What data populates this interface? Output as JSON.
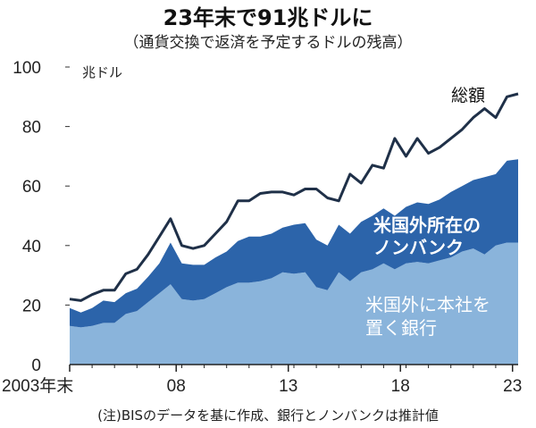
{
  "chart_data": {
    "type": "area",
    "title": "23年末で91兆ドルに",
    "subtitle": "（通貨交換で返済を予定するドルの残高）",
    "unit_label": "兆ドル",
    "note": "(注)BISのデータを基に作成、銀行とノンバンクは推計値",
    "ylim": [
      0,
      100
    ],
    "yticks": [
      0,
      20,
      40,
      60,
      80,
      100
    ],
    "xlim": [
      2003.75,
      2023.75
    ],
    "xticks": [
      {
        "value": 2003.75,
        "label": "2003年末"
      },
      {
        "value": 2008.5,
        "label": "08"
      },
      {
        "value": 2013.5,
        "label": "13"
      },
      {
        "value": 2018.5,
        "label": "18"
      },
      {
        "value": 2023.5,
        "label": "23"
      }
    ],
    "x": [
      2003.75,
      2004.25,
      2004.75,
      2005.25,
      2005.75,
      2006.25,
      2006.75,
      2007.25,
      2007.75,
      2008.25,
      2008.75,
      2009.25,
      2009.75,
      2010.25,
      2010.75,
      2011.25,
      2011.75,
      2012.25,
      2012.75,
      2013.25,
      2013.75,
      2014.25,
      2014.75,
      2015.25,
      2015.75,
      2016.25,
      2016.75,
      2017.25,
      2017.75,
      2018.25,
      2018.75,
      2019.25,
      2019.75,
      2020.25,
      2020.75,
      2021.25,
      2021.75,
      2022.25,
      2022.75,
      2023.25,
      2023.75
    ],
    "series": [
      {
        "name": "米国外に本社を置く銀行",
        "label_lines": [
          "米国外に本社を",
          "置く銀行"
        ],
        "color": "#8ab4db",
        "values": [
          13,
          12.5,
          13,
          14,
          14,
          17,
          18,
          21,
          24,
          27,
          22,
          21.5,
          22,
          24,
          26,
          27.5,
          27.5,
          28,
          29,
          31,
          30.5,
          31,
          26,
          25,
          31,
          28,
          31,
          32,
          34,
          32,
          34,
          34.5,
          34,
          35,
          36,
          38,
          39,
          37,
          40,
          41,
          41
        ]
      },
      {
        "name": "米国外所在のノンバンク",
        "label_lines": [
          "米国外所在の",
          "ノンバンク"
        ],
        "color": "#2c64aa",
        "values": [
          6,
          5,
          6,
          7.5,
          7,
          7,
          7.5,
          8.5,
          10,
          14,
          12,
          12,
          11.5,
          12,
          12,
          14,
          15.5,
          15,
          15,
          15,
          16.5,
          16.5,
          16,
          15,
          16,
          16,
          17,
          18,
          18.5,
          18,
          19,
          20,
          20,
          20.5,
          22,
          22,
          23,
          26,
          24,
          27.5,
          28
        ]
      }
    ],
    "total": {
      "name": "総額",
      "color": "#1f3048",
      "values": [
        22,
        21.5,
        23.5,
        25,
        25,
        30.5,
        32,
        37,
        43,
        49,
        40,
        39,
        40,
        44,
        48,
        55,
        55,
        57.5,
        58,
        58,
        57,
        59,
        59,
        56,
        55,
        64,
        61,
        67,
        66,
        76,
        70,
        76,
        71,
        73,
        76,
        79,
        83,
        86,
        83,
        90,
        91
      ]
    }
  }
}
